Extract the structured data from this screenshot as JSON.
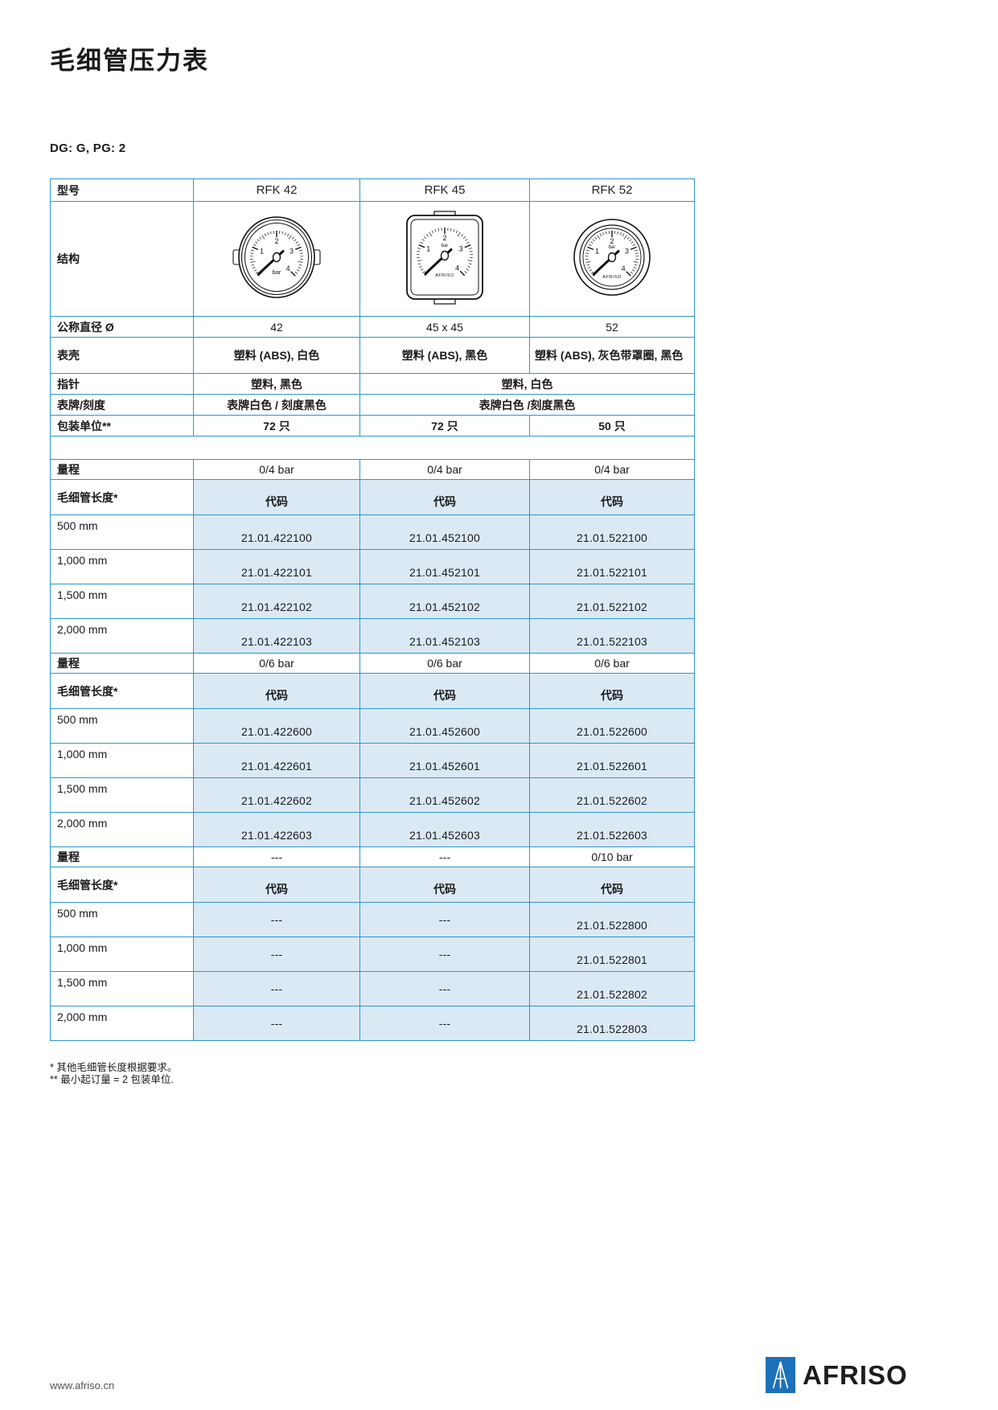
{
  "page": {
    "title": "毛细管压力表",
    "meta": "DG: G, PG: 2",
    "footnotes": [
      "*  其他毛细管长度根据要求。",
      "** 最小起订量 = 2 包装单位."
    ],
    "footer": {
      "url": "www.afriso.cn",
      "brand": "AFRISO"
    }
  },
  "colors": {
    "table_border": "#2e97cb",
    "cell_fill_blue": "#dbe9f5",
    "logo_blue": "#1d71b8"
  },
  "gauge": {
    "dial_numbers": [
      "1",
      "2",
      "3",
      "4"
    ],
    "dial_unit": "bar",
    "brand": "AFRISO"
  },
  "table": {
    "header": {
      "label": "型号",
      "models": [
        "RFK 42",
        "RFK 45",
        "RFK 52"
      ]
    },
    "structure_label": "结构",
    "spec_rows": [
      {
        "label": "公称直径 Ø",
        "bold_values": false,
        "cells": [
          {
            "text": "42"
          },
          {
            "text": "45 x 45"
          },
          {
            "text": "52"
          }
        ]
      },
      {
        "label": "表壳",
        "bold_values": true,
        "cells": [
          {
            "text": "塑料 (ABS), 白色"
          },
          {
            "text": "塑料 (ABS), 黑色"
          },
          {
            "text": "塑料 (ABS), 灰色带罩圈, 黑色",
            "align": "left"
          }
        ]
      },
      {
        "label": "指针",
        "bold_values": true,
        "cells": [
          {
            "text": "塑料, 黑色"
          },
          {
            "text": "塑料, 白色",
            "span": 2
          }
        ]
      },
      {
        "label": "表牌/刻度",
        "bold_values": true,
        "cells": [
          {
            "text": "表牌白色 / 刻度黑色"
          },
          {
            "text": "表牌白色 /刻度黑色",
            "span": 2
          }
        ]
      },
      {
        "label": "包装单位**",
        "bold_values": true,
        "cells": [
          {
            "text": "72 只"
          },
          {
            "text": "72 只"
          },
          {
            "text": "50 只"
          }
        ]
      }
    ],
    "sections": [
      {
        "range_label": "量程",
        "ranges": [
          "0/4 bar",
          "0/4 bar",
          "0/4 bar"
        ],
        "code_label": "毛细管长度*",
        "code_header": [
          "代码",
          "代码",
          "代码"
        ],
        "lengths": [
          "500 mm",
          "1,000 mm",
          "1,500 mm",
          "2,000 mm"
        ],
        "codes": [
          [
            "21.01.422100",
            "21.01.452100",
            "21.01.522100"
          ],
          [
            "21.01.422101",
            "21.01.452101",
            "21.01.522101"
          ],
          [
            "21.01.422102",
            "21.01.452102",
            "21.01.522102"
          ],
          [
            "21.01.422103",
            "21.01.452103",
            "21.01.522103"
          ]
        ]
      },
      {
        "range_label": "量程",
        "ranges": [
          "0/6 bar",
          "0/6 bar",
          "0/6 bar"
        ],
        "code_label": "毛细管长度*",
        "code_header": [
          "代码",
          "代码",
          "代码"
        ],
        "lengths": [
          "500 mm",
          "1,000 mm",
          "1,500 mm",
          "2,000 mm"
        ],
        "codes": [
          [
            "21.01.422600",
            "21.01.452600",
            "21.01.522600"
          ],
          [
            "21.01.422601",
            "21.01.452601",
            "21.01.522601"
          ],
          [
            "21.01.422602",
            "21.01.452602",
            "21.01.522602"
          ],
          [
            "21.01.422603",
            "21.01.452603",
            "21.01.522603"
          ]
        ]
      },
      {
        "range_label": "量程",
        "ranges": [
          "---",
          "---",
          "0/10 bar"
        ],
        "code_label": "毛细管长度*",
        "code_header": [
          "代码",
          "代码",
          "代码"
        ],
        "lengths": [
          "500 mm",
          "1,000 mm",
          "1,500 mm",
          "2,000 mm"
        ],
        "codes": [
          [
            "---",
            "---",
            "21.01.522800"
          ],
          [
            "---",
            "---",
            "21.01.522801"
          ],
          [
            "---",
            "---",
            "21.01.522802"
          ],
          [
            "---",
            "---",
            "21.01.522803"
          ]
        ]
      }
    ]
  }
}
